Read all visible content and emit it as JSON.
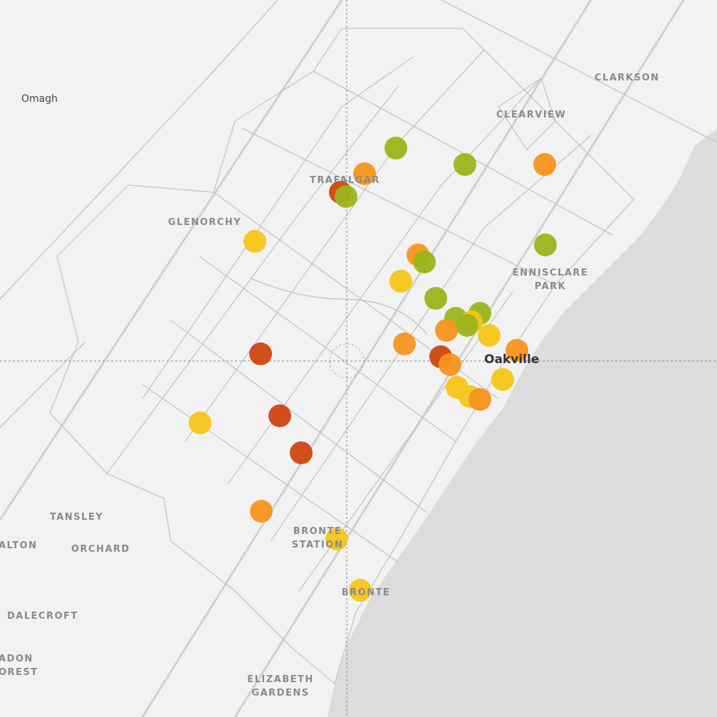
{
  "labels": [
    {
      "lines": [
        "Omagh"
      ]
    },
    {
      "lines": [
        "CLARKSON"
      ]
    },
    {
      "lines": [
        "CLEARVIEW"
      ]
    },
    {
      "lines": [
        "TRAFALGAR"
      ]
    },
    {
      "lines": [
        "GLENORCHY"
      ]
    },
    {
      "lines": [
        "ENNISCLARE",
        "PARK"
      ]
    },
    {
      "lines": [
        "Oakville"
      ]
    },
    {
      "lines": [
        "TANSLEY"
      ]
    },
    {
      "lines": [
        "ORCHARD"
      ]
    },
    {
      "lines": [
        "ALTON"
      ]
    },
    {
      "lines": [
        "DALECROFT"
      ]
    },
    {
      "lines": [
        "BRONTE",
        "STATION"
      ]
    },
    {
      "lines": [
        "BRONTE"
      ]
    },
    {
      "lines": [
        "ELIZABETH",
        "GARDENS"
      ]
    },
    {
      "lines": [
        "ADON",
        "OREST"
      ]
    }
  ]
}
